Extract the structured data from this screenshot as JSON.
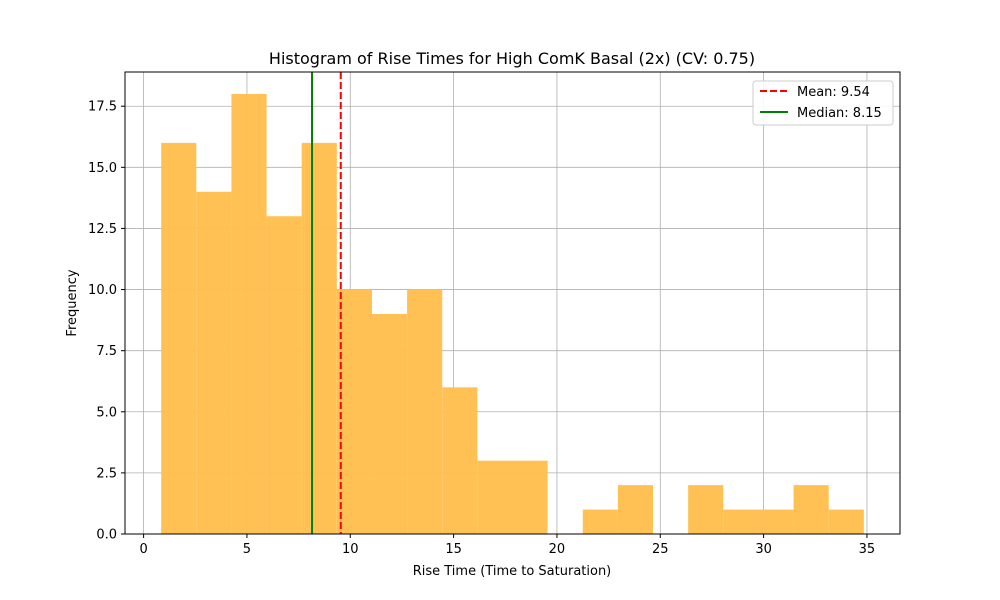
{
  "chart_data": {
    "type": "bar",
    "title": "Histogram of Rise Times for High ComK Basal (2x) (CV: 0.75)",
    "xlabel": "Rise Time (Time to Saturation)",
    "ylabel": "Frequency",
    "xlim": [
      -0.9,
      36.6
    ],
    "ylim": [
      0,
      18.9
    ],
    "xticks": [
      0,
      5,
      10,
      15,
      20,
      25,
      30,
      35
    ],
    "xtick_labels": [
      "0",
      "5",
      "10",
      "15",
      "20",
      "25",
      "30",
      "35"
    ],
    "yticks": [
      0.0,
      2.5,
      5.0,
      7.5,
      10.0,
      12.5,
      15.0,
      17.5
    ],
    "ytick_labels": [
      "0.0",
      "2.5",
      "5.0",
      "7.5",
      "10.0",
      "12.5",
      "15.0",
      "17.5"
    ],
    "grid": true,
    "bar_color": "#ffbf4d",
    "bins": [
      {
        "start": 0.85,
        "end": 2.55,
        "count": 16
      },
      {
        "start": 2.55,
        "end": 4.25,
        "count": 14
      },
      {
        "start": 4.25,
        "end": 5.95,
        "count": 18
      },
      {
        "start": 5.95,
        "end": 7.65,
        "count": 13
      },
      {
        "start": 7.65,
        "end": 9.35,
        "count": 16
      },
      {
        "start": 9.35,
        "end": 11.05,
        "count": 10
      },
      {
        "start": 11.05,
        "end": 12.75,
        "count": 9
      },
      {
        "start": 12.75,
        "end": 14.45,
        "count": 10
      },
      {
        "start": 14.45,
        "end": 16.15,
        "count": 6
      },
      {
        "start": 16.15,
        "end": 17.85,
        "count": 3
      },
      {
        "start": 17.85,
        "end": 19.55,
        "count": 3
      },
      {
        "start": 19.55,
        "end": 21.25,
        "count": 0
      },
      {
        "start": 21.25,
        "end": 22.95,
        "count": 1
      },
      {
        "start": 22.95,
        "end": 24.65,
        "count": 2
      },
      {
        "start": 24.65,
        "end": 26.35,
        "count": 0
      },
      {
        "start": 26.35,
        "end": 28.05,
        "count": 2
      },
      {
        "start": 28.05,
        "end": 29.75,
        "count": 1
      },
      {
        "start": 29.75,
        "end": 31.45,
        "count": 1
      },
      {
        "start": 31.45,
        "end": 33.15,
        "count": 2
      },
      {
        "start": 33.15,
        "end": 34.85,
        "count": 1
      }
    ],
    "reference_lines": [
      {
        "label": "Mean: 9.54",
        "value": 9.54,
        "color": "#ff0000",
        "style": "dashed"
      },
      {
        "label": "Median: 8.15",
        "value": 8.15,
        "color": "#008000",
        "style": "solid"
      }
    ],
    "legend_position": "top-right"
  }
}
